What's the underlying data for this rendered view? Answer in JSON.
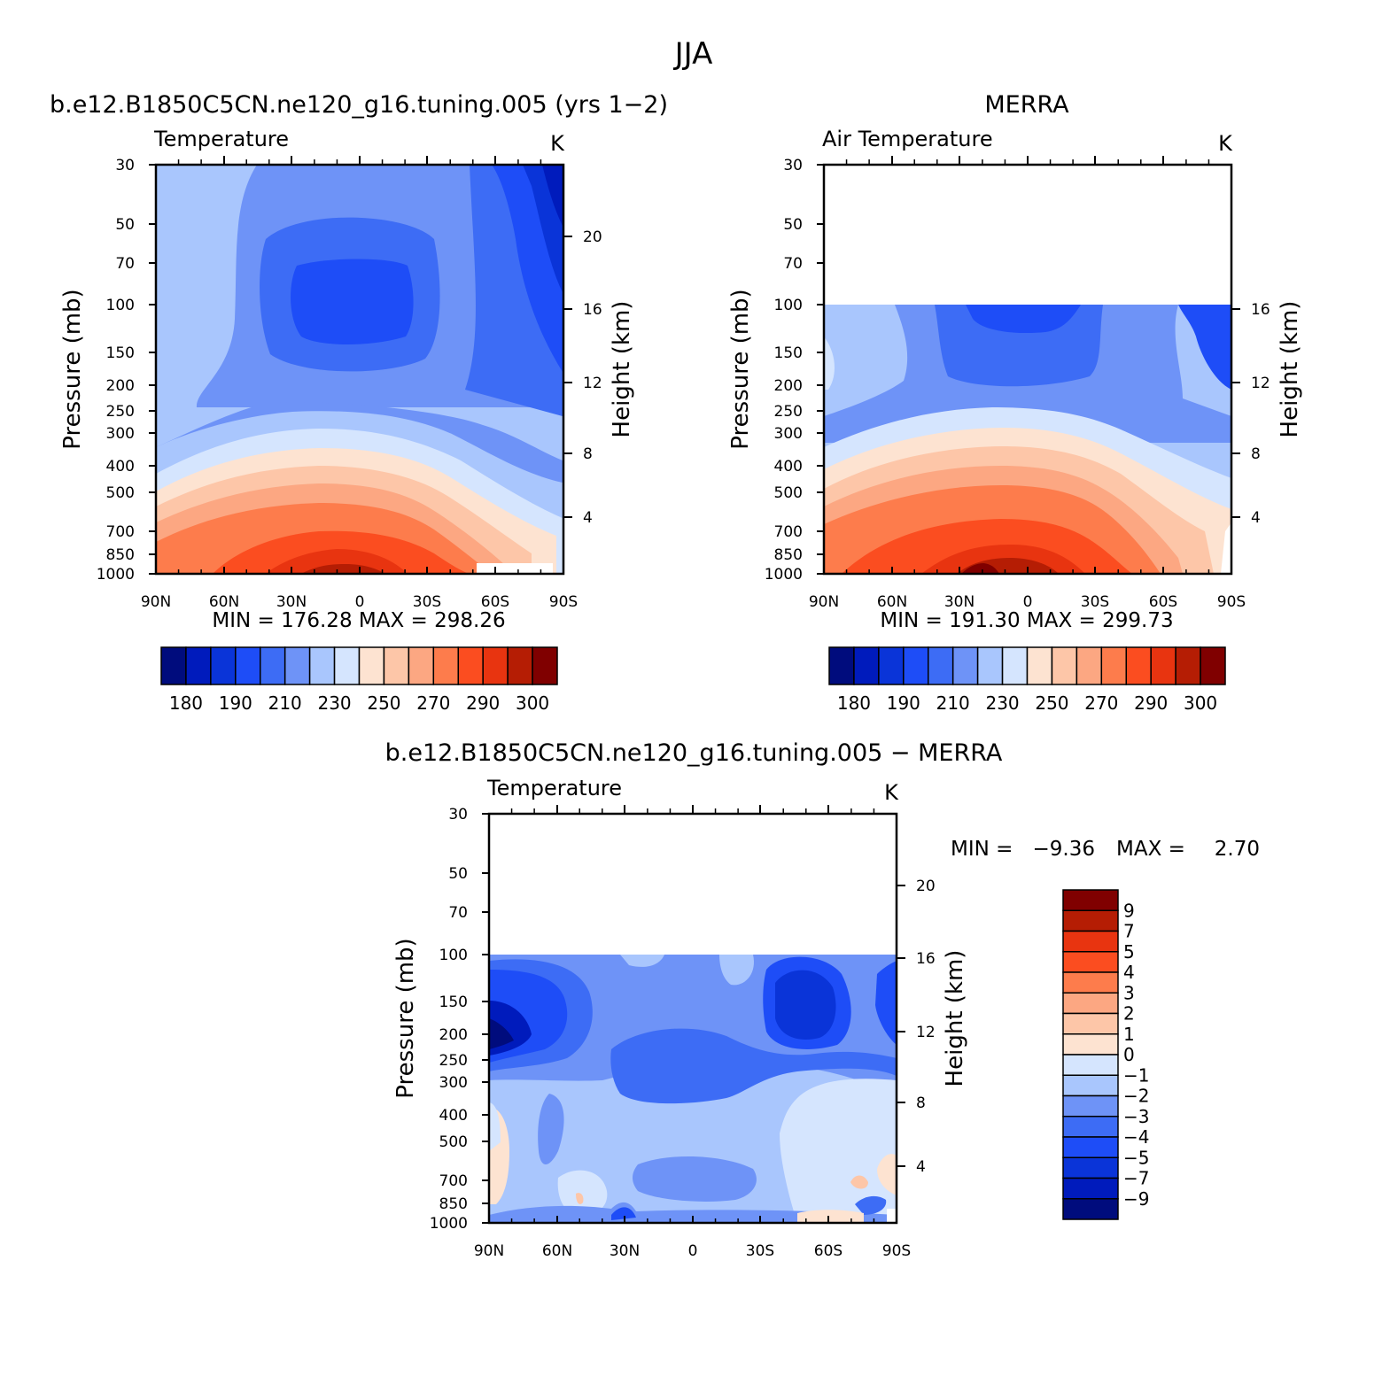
{
  "figure_title": "JJA",
  "colors": {
    "scale": [
      "#000c7d",
      "#001bbc",
      "#0a34d8",
      "#1e4df7",
      "#3d6cf5",
      "#6e93f7",
      "#a9c6fd",
      "#d5e5fe",
      "#fde3d1",
      "#fdc6a8",
      "#fca782",
      "#fd7c4c",
      "#fb4d20",
      "#e83410",
      "#b51d04",
      "#800000"
    ],
    "diff_scale": [
      "#800000",
      "#b51d04",
      "#e83410",
      "#fb4d20",
      "#fd7c4c",
      "#fca782",
      "#fdc6a8",
      "#fde3d1",
      "#d5e5fe",
      "#a9c6fd",
      "#6e93f7",
      "#3d6cf5",
      "#1e4df7",
      "#0a34d8",
      "#001bbc",
      "#000c7d"
    ]
  },
  "chart_data": [
    {
      "id": "model",
      "type": "heatmap",
      "panel_title": "b.e12.B1850C5CN.ne120_g16.tuning.005 (yrs 1−2)",
      "left_string": "Temperature",
      "right_string": "K",
      "xlabel": "",
      "ylabel": "Pressure (mb)",
      "ylabel_right": "Height (km)",
      "x_ticks": [
        "90N",
        "60N",
        "30N",
        "0",
        "30S",
        "60S",
        "90S"
      ],
      "y_ticks": [
        "30",
        "50",
        "70",
        "100",
        "150",
        "200",
        "250",
        "300",
        "400",
        "500",
        "700",
        "850",
        "1000"
      ],
      "y_right_ticks": [
        "20",
        "16",
        "12",
        "8",
        "4"
      ],
      "stats": "MIN = 176.28   MAX = 298.26",
      "colorbar_labels": [
        "180",
        "190",
        "210",
        "230",
        "250",
        "270",
        "290",
        "300"
      ],
      "contour_levels": [
        180,
        185,
        190,
        200,
        210,
        220,
        230,
        240,
        250,
        260,
        270,
        280,
        285,
        290,
        295,
        300
      ],
      "ylim": [
        1000,
        30
      ]
    },
    {
      "id": "obs",
      "type": "heatmap",
      "panel_title": "MERRA",
      "left_string": "Air Temperature",
      "right_string": "K",
      "xlabel": "",
      "ylabel": "Pressure (mb)",
      "ylabel_right": "Height (km)",
      "x_ticks": [
        "90N",
        "60N",
        "30N",
        "0",
        "30S",
        "60S",
        "90S"
      ],
      "y_ticks": [
        "30",
        "50",
        "70",
        "100",
        "150",
        "200",
        "250",
        "300",
        "400",
        "500",
        "700",
        "850",
        "1000"
      ],
      "y_right_ticks": [
        "16",
        "12",
        "8",
        "4"
      ],
      "stats": "MIN = 191.30   MAX = 299.73",
      "colorbar_labels": [
        "180",
        "190",
        "210",
        "230",
        "250",
        "270",
        "290",
        "300"
      ],
      "data_top_mb": 100,
      "ylim": [
        1000,
        30
      ]
    },
    {
      "id": "diff",
      "type": "heatmap",
      "panel_title": "b.e12.B1850C5CN.ne120_g16.tuning.005 − MERRA",
      "left_string": "Temperature",
      "right_string": "K",
      "xlabel": "",
      "ylabel": "Pressure (mb)",
      "ylabel_right": "Height (km)",
      "x_ticks": [
        "90N",
        "60N",
        "30N",
        "0",
        "30S",
        "60S",
        "90S"
      ],
      "y_ticks": [
        "30",
        "50",
        "70",
        "100",
        "150",
        "200",
        "250",
        "300",
        "400",
        "500",
        "700",
        "850",
        "1000"
      ],
      "y_right_ticks": [
        "20",
        "16",
        "12",
        "8",
        "4"
      ],
      "stats_min_label": "MIN =",
      "stats_min": "−9.36",
      "stats_max_label": "MAX =",
      "stats_max": "2.70",
      "colorbar_labels": [
        "9",
        "7",
        "5",
        "4",
        "3",
        "2",
        "1",
        "0",
        "−1",
        "−2",
        "−3",
        "−4",
        "−5",
        "−7",
        "−9"
      ],
      "data_top_mb": 100,
      "ylim": [
        1000,
        30
      ]
    }
  ]
}
